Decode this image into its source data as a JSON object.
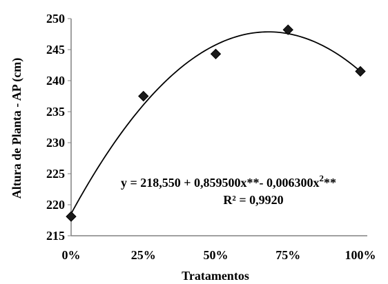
{
  "chart_data": {
    "type": "scatter",
    "xlabel": "Tratamentos",
    "ylabel": "Altura de Planta - AP (cm)",
    "x_values": [
      0,
      25,
      50,
      75,
      100
    ],
    "x_tick_labels": [
      "0%",
      "25%",
      "50%",
      "75%",
      "100%"
    ],
    "y_ticks": [
      215,
      220,
      225,
      230,
      235,
      240,
      245,
      250
    ],
    "xlim": [
      0,
      100
    ],
    "ylim": [
      215,
      250
    ],
    "grid": false,
    "series": [
      {
        "values": [
          218.1,
          237.5,
          244.3,
          248.2,
          241.5
        ]
      }
    ],
    "trendline": {
      "kind": "polynomial-2",
      "coefficients": [
        218.55,
        0.8595,
        -0.0063
      ],
      "equation_prefix": "y = 218,550 + 0,859500x**- 0,006300x",
      "equation_exponent": "2",
      "equation_suffix": "**",
      "r_squared_label": "R² = 0,9920"
    },
    "colors": {
      "marker": "#1a1a1a",
      "line": "#000000",
      "axis": "#808080"
    }
  }
}
